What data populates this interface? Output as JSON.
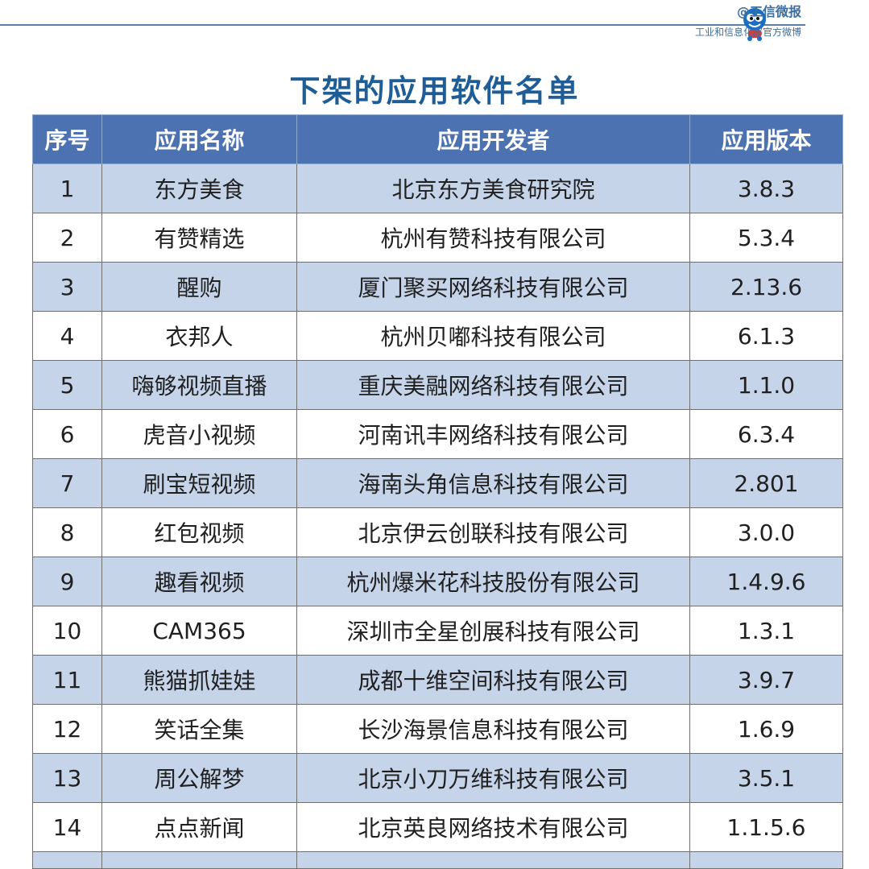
{
  "brand": {
    "name": "@工信微报",
    "subtitle": "工业和信息化部官方微博",
    "mascot_icon": "mascot-icon"
  },
  "title": "下架的应用软件名单",
  "colors": {
    "header_bg": "#4c72b2",
    "alt_row_bg": "#c6d4ea",
    "title": "#1f5d97"
  },
  "table": {
    "headers": [
      "序号",
      "应用名称",
      "应用开发者",
      "应用版本"
    ],
    "rows": [
      {
        "no": "1",
        "name": "东方美食",
        "developer": "北京东方美食研究院",
        "version": "3.8.3"
      },
      {
        "no": "2",
        "name": "有赞精选",
        "developer": "杭州有赞科技有限公司",
        "version": "5.3.4"
      },
      {
        "no": "3",
        "name": "醒购",
        "developer": "厦门聚买网络科技有限公司",
        "version": "2.13.6"
      },
      {
        "no": "4",
        "name": "衣邦人",
        "developer": "杭州贝嘟科技有限公司",
        "version": "6.1.3"
      },
      {
        "no": "5",
        "name": "嗨够视频直播",
        "developer": "重庆美融网络科技有限公司",
        "version": "1.1.0"
      },
      {
        "no": "6",
        "name": "虎音小视频",
        "developer": "河南讯丰网络科技有限公司",
        "version": "6.3.4"
      },
      {
        "no": "7",
        "name": "刷宝短视频",
        "developer": "海南头角信息科技有限公司",
        "version": "2.801"
      },
      {
        "no": "8",
        "name": "红包视频",
        "developer": "北京伊云创联科技有限公司",
        "version": "3.0.0"
      },
      {
        "no": "9",
        "name": "趣看视频",
        "developer": "杭州爆米花科技股份有限公司",
        "version": "1.4.9.6"
      },
      {
        "no": "10",
        "name": "CAM365",
        "developer": "深圳市全星创展科技有限公司",
        "version": "1.3.1"
      },
      {
        "no": "11",
        "name": "熊猫抓娃娃",
        "developer": "成都十维空间科技有限公司",
        "version": "3.9.7"
      },
      {
        "no": "12",
        "name": "笑话全集",
        "developer": "长沙海景信息科技有限公司",
        "version": "1.6.9"
      },
      {
        "no": "13",
        "name": "周公解梦",
        "developer": "北京小刀万维科技有限公司",
        "version": "3.5.1"
      },
      {
        "no": "14",
        "name": "点点新闻",
        "developer": "北京英良网络技术有限公司",
        "version": "1.1.5.6"
      }
    ]
  }
}
